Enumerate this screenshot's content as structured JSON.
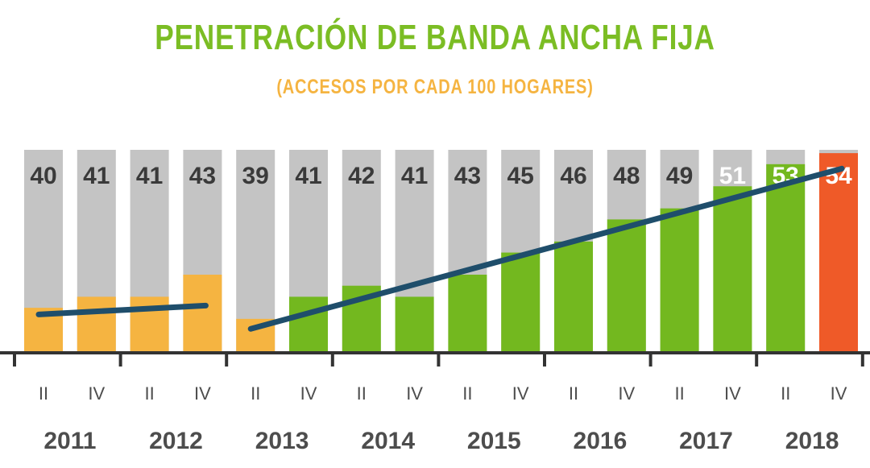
{
  "title": "PENETRACIÓN DE BANDA ANCHA FIJA",
  "subtitle": "(ACCESOS POR CADA 100 HOGARES)",
  "colors": {
    "title": "#7bbd24",
    "subtitle": "#f5b441",
    "background_bar": "#c4c4c4",
    "orange": "#f5b441",
    "green": "#73b81f",
    "highlight": "#ef5a28",
    "trend_line": "#1f4e6b",
    "axis": "#333333",
    "label_dark": "#3a3a3a",
    "label_light": "#ffffff",
    "axis_text": "#4d4d4d"
  },
  "chart_data": {
    "type": "bar",
    "categories": [
      "2011 II",
      "2011 IV",
      "2012 II",
      "2012 IV",
      "2013 II",
      "2013 IV",
      "2014 II",
      "2014 IV",
      "2015 II",
      "2015 IV",
      "2016 II",
      "2016 IV",
      "2017 II",
      "2017 IV",
      "2018 II",
      "2018 IV"
    ],
    "values": [
      40,
      41,
      41,
      43,
      39,
      41,
      42,
      41,
      43,
      45,
      46,
      48,
      49,
      51,
      53,
      54
    ],
    "ylim": [
      36,
      54.3
    ],
    "bar_colors": [
      "orange",
      "orange",
      "orange",
      "orange",
      "orange",
      "green",
      "green",
      "green",
      "green",
      "green",
      "green",
      "green",
      "green",
      "green",
      "green",
      "highlight"
    ],
    "label_colors": [
      "dark",
      "dark",
      "dark",
      "dark",
      "dark",
      "dark",
      "dark",
      "dark",
      "dark",
      "dark",
      "dark",
      "dark",
      "dark",
      "light",
      "light",
      "light"
    ],
    "quarter_labels": [
      "II",
      "IV"
    ],
    "years": [
      "2011",
      "2012",
      "2013",
      "2014",
      "2015",
      "2016",
      "2017",
      "2018"
    ],
    "trend_lines": [
      {
        "from": "2011 II",
        "to": "2012 IV",
        "start": 39.4,
        "end": 40.2
      },
      {
        "from": "2013 II",
        "to": "2018 IV",
        "start": 38.1,
        "end": 52.6
      }
    ]
  }
}
